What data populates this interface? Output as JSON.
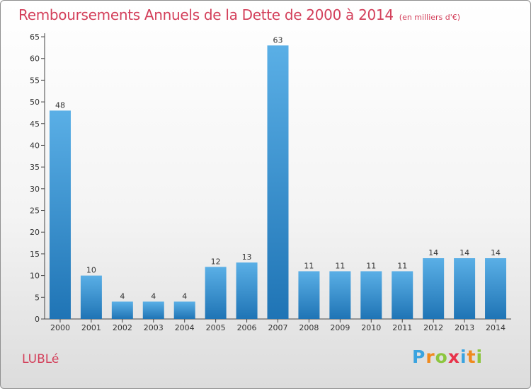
{
  "title": "Remboursements Annuels de la Dette de 2000 à 2014",
  "unit": "(en milliers d'€)",
  "location": "LUBLé",
  "logo": {
    "letters": [
      "P",
      "r",
      "o",
      "x",
      "i",
      "t",
      "i"
    ],
    "colors": [
      "#3aa3df",
      "#f08a1e",
      "#8cc63e",
      "#e8334a",
      "#3aa3df",
      "#f08a1e",
      "#8cc63e"
    ]
  },
  "colors": {
    "title": "#d33f5a",
    "bar_light": "#5aafe6",
    "bar_dark": "#1f74b5"
  },
  "chart_data": {
    "type": "bar",
    "categories": [
      "2000",
      "2001",
      "2002",
      "2003",
      "2004",
      "2005",
      "2006",
      "2007",
      "2008",
      "2009",
      "2010",
      "2011",
      "2012",
      "2013",
      "2014"
    ],
    "values": [
      48,
      10,
      4,
      4,
      4,
      12,
      13,
      63,
      11,
      11,
      11,
      11,
      14,
      14,
      14
    ],
    "data_labels": [
      "48",
      "10",
      "4",
      "4",
      "4",
      "12",
      "13",
      "63",
      "11",
      "11",
      "11",
      "11",
      "14",
      "14",
      "14"
    ],
    "yticks": [
      "0",
      "5",
      "10",
      "15",
      "20",
      "25",
      "30",
      "35",
      "40",
      "45",
      "50",
      "55",
      "60",
      "65"
    ],
    "ylim": [
      0,
      65
    ],
    "grid": false,
    "legend": "none"
  }
}
